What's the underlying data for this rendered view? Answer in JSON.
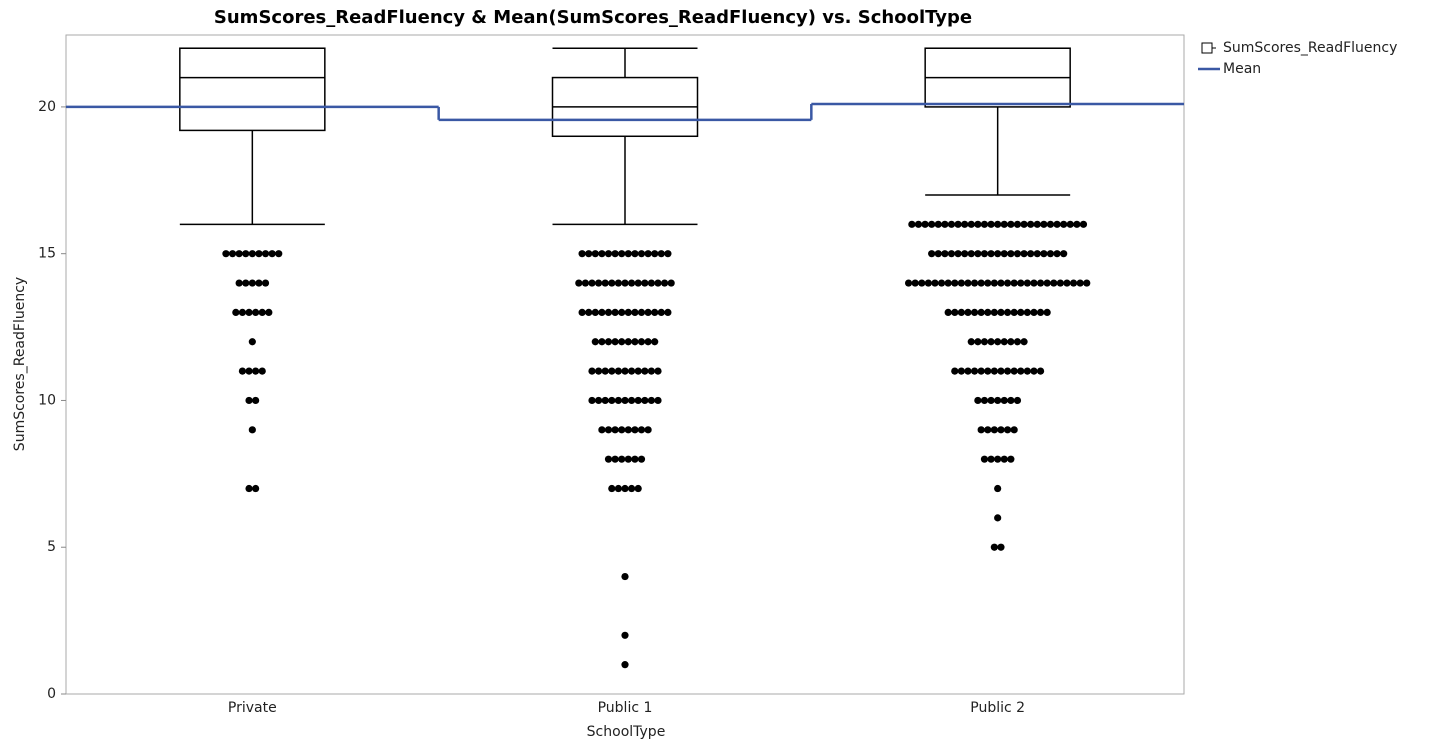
{
  "chart_data": {
    "type": "box",
    "title": "SumScores_ReadFluency & Mean(SumScores_ReadFluency) vs. SchoolType",
    "x_label": "SchoolType",
    "y_label": "SumScores_ReadFluency",
    "categories": [
      "Private",
      "Public 1",
      "Public 2"
    ],
    "ylim": [
      0,
      22.45
    ],
    "yticks": [
      0,
      5,
      10,
      15,
      20
    ],
    "legend": "right",
    "series": [
      {
        "name": "SumScores_ReadFluency",
        "color": "#000000",
        "boxes": [
          {
            "q1": 19.2,
            "median": 21,
            "q3": 22,
            "whisker_low": 16,
            "whisker_high": 22,
            "outliers": [
              {
                "value": 15,
                "count": 9
              },
              {
                "value": 14,
                "count": 5
              },
              {
                "value": 13,
                "count": 6
              },
              {
                "value": 12,
                "count": 1
              },
              {
                "value": 11,
                "count": 4
              },
              {
                "value": 10,
                "count": 2
              },
              {
                "value": 9,
                "count": 1
              },
              {
                "value": 7,
                "count": 2
              }
            ]
          },
          {
            "q1": 19,
            "median": 20,
            "q3": 21,
            "whisker_low": 16,
            "whisker_high": 22,
            "outliers": [
              {
                "value": 15,
                "count": 14
              },
              {
                "value": 14,
                "count": 15
              },
              {
                "value": 13,
                "count": 14
              },
              {
                "value": 12,
                "count": 10
              },
              {
                "value": 11,
                "count": 11
              },
              {
                "value": 10,
                "count": 11
              },
              {
                "value": 9,
                "count": 8
              },
              {
                "value": 8,
                "count": 6
              },
              {
                "value": 7,
                "count": 5
              },
              {
                "value": 4,
                "count": 1
              },
              {
                "value": 2,
                "count": 1
              },
              {
                "value": 1,
                "count": 1
              }
            ]
          },
          {
            "q1": 20,
            "median": 21,
            "q3": 22,
            "whisker_low": 17,
            "whisker_high": 22,
            "outliers": [
              {
                "value": 16,
                "count": 27
              },
              {
                "value": 15,
                "count": 21
              },
              {
                "value": 14,
                "count": 28
              },
              {
                "value": 13,
                "count": 16
              },
              {
                "value": 12,
                "count": 9
              },
              {
                "value": 11,
                "count": 14
              },
              {
                "value": 10,
                "count": 7
              },
              {
                "value": 9,
                "count": 6
              },
              {
                "value": 8,
                "count": 5
              },
              {
                "value": 7,
                "count": 1
              },
              {
                "value": 6,
                "count": 1
              },
              {
                "value": 5,
                "count": 2
              }
            ]
          }
        ]
      },
      {
        "name": "Mean",
        "color": "#3a58a4",
        "values": [
          20,
          19.56,
          20.1
        ]
      }
    ]
  }
}
